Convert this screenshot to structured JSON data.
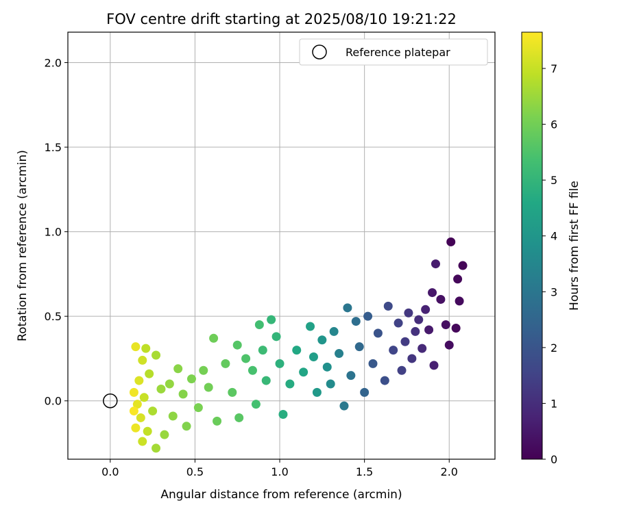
{
  "chart_data": {
    "type": "scatter",
    "title": "FOV centre drift starting at 2025/08/10 19:21:22",
    "xlabel": "Angular distance from reference (arcmin)",
    "ylabel": "Rotation from reference (arcmin)",
    "xlim": [
      -0.25,
      2.27
    ],
    "ylim": [
      -0.345,
      2.18
    ],
    "xticks": [
      0.0,
      0.5,
      1.0,
      1.5,
      2.0
    ],
    "yticks": [
      0.0,
      0.5,
      1.0,
      1.5,
      2.0
    ],
    "xtick_labels": [
      "0.0",
      "0.5",
      "1.0",
      "1.5",
      "2.0"
    ],
    "ytick_labels": [
      "0.0",
      "0.5",
      "1.0",
      "1.5",
      "2.0"
    ],
    "grid": true,
    "colormap": "viridis",
    "colorbar": {
      "label": "Hours from first FF file",
      "range": [
        0,
        7.65
      ],
      "ticks": [
        0,
        1,
        2,
        3,
        4,
        5,
        6,
        7
      ],
      "tick_labels": [
        "0",
        "1",
        "2",
        "3",
        "4",
        "5",
        "6",
        "7"
      ]
    },
    "legend": {
      "placement": "upper-right",
      "entries": [
        {
          "label": "Reference platepar",
          "marker": "open-circle",
          "color": "#000000"
        }
      ]
    },
    "reference_point": {
      "x": 0.0,
      "y": 0.0
    },
    "marker_color_encoding": "hours",
    "points": [
      {
        "x": 2.01,
        "y": 0.94,
        "hours": 0.05
      },
      {
        "x": 2.08,
        "y": 0.8,
        "hours": 0.1
      },
      {
        "x": 2.05,
        "y": 0.72,
        "hours": 0.15
      },
      {
        "x": 2.06,
        "y": 0.59,
        "hours": 0.2
      },
      {
        "x": 2.04,
        "y": 0.43,
        "hours": 0.15
      },
      {
        "x": 2.0,
        "y": 0.33,
        "hours": 0.25
      },
      {
        "x": 1.98,
        "y": 0.45,
        "hours": 0.3
      },
      {
        "x": 1.95,
        "y": 0.6,
        "hours": 0.35
      },
      {
        "x": 1.92,
        "y": 0.81,
        "hours": 0.6
      },
      {
        "x": 1.9,
        "y": 0.64,
        "hours": 0.5
      },
      {
        "x": 1.88,
        "y": 0.42,
        "hours": 0.55
      },
      {
        "x": 1.91,
        "y": 0.21,
        "hours": 0.7
      },
      {
        "x": 1.86,
        "y": 0.54,
        "hours": 0.75
      },
      {
        "x": 1.84,
        "y": 0.31,
        "hours": 0.9
      },
      {
        "x": 1.82,
        "y": 0.48,
        "hours": 1.0
      },
      {
        "x": 1.8,
        "y": 0.41,
        "hours": 1.1
      },
      {
        "x": 1.78,
        "y": 0.25,
        "hours": 1.2
      },
      {
        "x": 1.76,
        "y": 0.52,
        "hours": 1.25
      },
      {
        "x": 1.74,
        "y": 0.35,
        "hours": 1.35
      },
      {
        "x": 1.72,
        "y": 0.18,
        "hours": 1.45
      },
      {
        "x": 1.7,
        "y": 0.46,
        "hours": 1.5
      },
      {
        "x": 1.67,
        "y": 0.3,
        "hours": 1.6
      },
      {
        "x": 1.64,
        "y": 0.56,
        "hours": 1.7
      },
      {
        "x": 1.62,
        "y": 0.12,
        "hours": 1.85
      },
      {
        "x": 1.58,
        "y": 0.4,
        "hours": 1.95
      },
      {
        "x": 1.55,
        "y": 0.22,
        "hours": 2.1
      },
      {
        "x": 1.52,
        "y": 0.5,
        "hours": 2.25
      },
      {
        "x": 1.5,
        "y": 0.05,
        "hours": 2.45
      },
      {
        "x": 1.47,
        "y": 0.32,
        "hours": 2.6
      },
      {
        "x": 1.45,
        "y": 0.47,
        "hours": 2.75
      },
      {
        "x": 1.42,
        "y": 0.15,
        "hours": 2.9
      },
      {
        "x": 1.4,
        "y": 0.55,
        "hours": 3.0
      },
      {
        "x": 1.38,
        "y": -0.03,
        "hours": 3.1
      },
      {
        "x": 1.35,
        "y": 0.28,
        "hours": 3.3
      },
      {
        "x": 1.32,
        "y": 0.41,
        "hours": 3.5
      },
      {
        "x": 1.3,
        "y": 0.1,
        "hours": 3.65
      },
      {
        "x": 1.28,
        "y": 0.2,
        "hours": 3.8
      },
      {
        "x": 1.25,
        "y": 0.36,
        "hours": 3.95
      },
      {
        "x": 1.22,
        "y": 0.05,
        "hours": 4.1
      },
      {
        "x": 1.2,
        "y": 0.26,
        "hours": 4.25
      },
      {
        "x": 1.18,
        "y": 0.44,
        "hours": 4.35
      },
      {
        "x": 1.14,
        "y": 0.17,
        "hours": 4.5
      },
      {
        "x": 1.1,
        "y": 0.3,
        "hours": 4.6
      },
      {
        "x": 1.06,
        "y": 0.1,
        "hours": 4.7
      },
      {
        "x": 1.02,
        "y": -0.08,
        "hours": 4.75
      },
      {
        "x": 1.0,
        "y": 0.22,
        "hours": 4.85
      },
      {
        "x": 0.98,
        "y": 0.38,
        "hours": 5.0
      },
      {
        "x": 0.95,
        "y": 0.48,
        "hours": 5.05
      },
      {
        "x": 0.92,
        "y": 0.12,
        "hours": 5.1
      },
      {
        "x": 0.9,
        "y": 0.3,
        "hours": 5.2
      },
      {
        "x": 0.88,
        "y": 0.45,
        "hours": 5.3
      },
      {
        "x": 0.86,
        "y": -0.02,
        "hours": 5.35
      },
      {
        "x": 0.84,
        "y": 0.18,
        "hours": 5.4
      },
      {
        "x": 0.8,
        "y": 0.25,
        "hours": 5.5
      },
      {
        "x": 0.75,
        "y": 0.33,
        "hours": 5.6
      },
      {
        "x": 0.76,
        "y": -0.1,
        "hours": 5.65
      },
      {
        "x": 0.72,
        "y": 0.05,
        "hours": 5.7
      },
      {
        "x": 0.68,
        "y": 0.22,
        "hours": 5.8
      },
      {
        "x": 0.63,
        "y": -0.12,
        "hours": 5.9
      },
      {
        "x": 0.61,
        "y": 0.37,
        "hours": 5.95
      },
      {
        "x": 0.58,
        "y": 0.08,
        "hours": 6.0
      },
      {
        "x": 0.55,
        "y": 0.18,
        "hours": 6.05
      },
      {
        "x": 0.52,
        "y": -0.04,
        "hours": 6.1
      },
      {
        "x": 0.48,
        "y": 0.13,
        "hours": 6.15
      },
      {
        "x": 0.45,
        "y": -0.15,
        "hours": 6.2
      },
      {
        "x": 0.43,
        "y": 0.04,
        "hours": 6.25
      },
      {
        "x": 0.4,
        "y": 0.19,
        "hours": 6.3
      },
      {
        "x": 0.37,
        "y": -0.09,
        "hours": 6.35
      },
      {
        "x": 0.35,
        "y": 0.1,
        "hours": 6.4
      },
      {
        "x": 0.32,
        "y": -0.2,
        "hours": 6.45
      },
      {
        "x": 0.3,
        "y": 0.07,
        "hours": 6.5
      },
      {
        "x": 0.27,
        "y": -0.28,
        "hours": 6.6
      },
      {
        "x": 0.27,
        "y": 0.27,
        "hours": 6.65
      },
      {
        "x": 0.25,
        "y": -0.06,
        "hours": 6.7
      },
      {
        "x": 0.23,
        "y": 0.16,
        "hours": 6.8
      },
      {
        "x": 0.21,
        "y": 0.31,
        "hours": 6.9
      },
      {
        "x": 0.22,
        "y": -0.18,
        "hours": 6.95
      },
      {
        "x": 0.2,
        "y": 0.02,
        "hours": 7.0
      },
      {
        "x": 0.19,
        "y": -0.24,
        "hours": 7.05
      },
      {
        "x": 0.19,
        "y": 0.24,
        "hours": 7.1
      },
      {
        "x": 0.18,
        "y": -0.1,
        "hours": 7.2
      },
      {
        "x": 0.17,
        "y": 0.12,
        "hours": 7.25
      },
      {
        "x": 0.16,
        "y": -0.02,
        "hours": 7.35
      },
      {
        "x": 0.15,
        "y": 0.32,
        "hours": 7.4
      },
      {
        "x": 0.15,
        "y": -0.16,
        "hours": 7.45
      },
      {
        "x": 0.14,
        "y": 0.05,
        "hours": 7.5
      },
      {
        "x": 0.14,
        "y": -0.06,
        "hours": 7.6
      }
    ]
  }
}
